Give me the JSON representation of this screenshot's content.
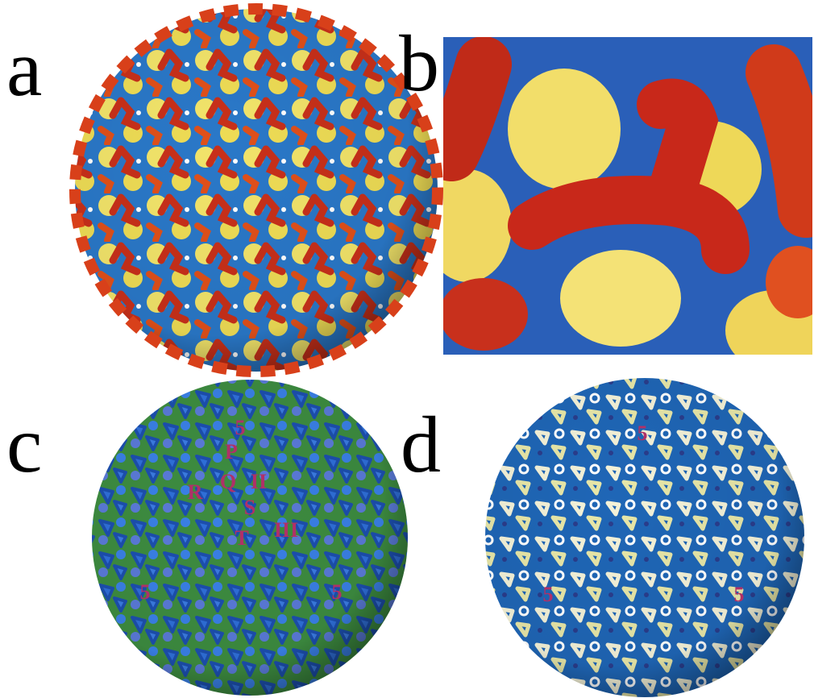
{
  "panels": [
    {
      "letter": "a"
    },
    {
      "letter": "b"
    },
    {
      "letter": "c",
      "labels": [
        "5",
        "P",
        "Q",
        "R",
        "II",
        "S",
        "III",
        "T",
        "5",
        "5"
      ]
    },
    {
      "letter": "d",
      "labels": [
        "5",
        "5",
        "5"
      ]
    }
  ]
}
